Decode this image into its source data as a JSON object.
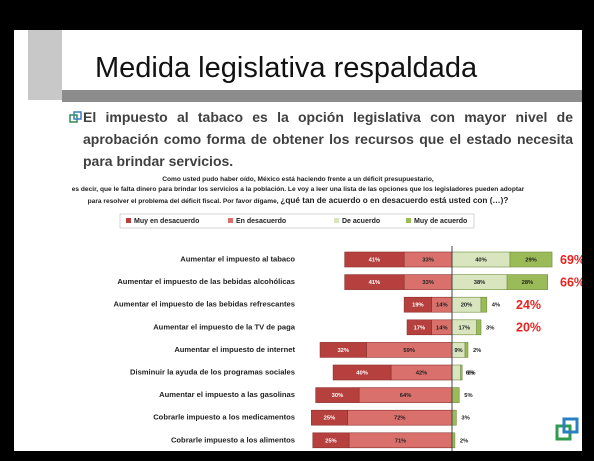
{
  "title": "Medida legislativa respaldada",
  "bullet": "El impuesto al tabaco es la opción legislativa con mayor nivel de aprobación como forma de obtener los recursos que el estado necesita para brindar servicios.",
  "intro": {
    "lines": [
      "Como usted pudo haber oído, México está haciendo frente a un déficit presupuestario,",
      "es decir, que le falta dinero para brindar los servicios a la población. Le voy a leer una lista de las opciones que los legisladores pueden adoptar",
      "para resolver el problema del déficit fiscal. Por favor dígame,"
    ],
    "question": "¿qué tan de acuerdo o en desacuerdo está usted con (…)?"
  },
  "chart_data": {
    "type": "bar",
    "categories": [
      "Aumentar el impuesto al  tabaco",
      "Aumentar el impuesto de las bebidas alcohólicas",
      "Aumentar el impuesto de las bebidas refrescantes",
      "Aumentar el impuesto de la TV de paga",
      "Aumentar el impuesto de internet",
      "Disminuir la ayuda de los programas sociales",
      "Aumentar el impuesto a las gasolinas",
      "Cobrarle impuesto a los medicamentos",
      "Cobrarle  impuesto a los alimentos"
    ],
    "series": [
      {
        "name": "Muy en desacuerdo",
        "color": "#b5403e",
        "values": [
          41,
          41,
          19,
          17,
          32,
          40,
          30,
          25,
          25
        ],
        "value_labels": [
          "41%",
          "41%",
          "19%",
          "17%",
          "32%",
          "40%",
          "30%",
          "25%",
          "25%"
        ]
      },
      {
        "name": "En desacuerdo",
        "color": "#d9706b",
        "values": [
          33,
          33,
          14,
          14,
          59,
          42,
          64,
          72,
          71
        ],
        "value_labels": [
          "33%",
          "33%",
          "14%",
          "14%",
          "59%",
          "42%",
          "64%",
          "72%",
          "71%"
        ]
      },
      {
        "name": "De acuerdo",
        "color": "#d8e5bf",
        "values": [
          40,
          38,
          20,
          17,
          9,
          6,
          null,
          null,
          null
        ],
        "value_labels": [
          "40%",
          "38%",
          "20%",
          "17%",
          "9%",
          "6%",
          null,
          null,
          null
        ]
      },
      {
        "name": "Muy de acuerdo",
        "color": "#9bbb59",
        "values": [
          29,
          28,
          4,
          3,
          2,
          1,
          5,
          3,
          2
        ],
        "value_labels": [
          "29%",
          "28%",
          "4%",
          "3%",
          "2%",
          "1%",
          "5%",
          "3%",
          "2%"
        ]
      }
    ],
    "totals": [
      69,
      66,
      24,
      20,
      null,
      null,
      null,
      null,
      null
    ],
    "total_labels": [
      "69%",
      "66%",
      "24%",
      "20%",
      null,
      null,
      null,
      null,
      null
    ],
    "total_color": "#e8231f"
  }
}
